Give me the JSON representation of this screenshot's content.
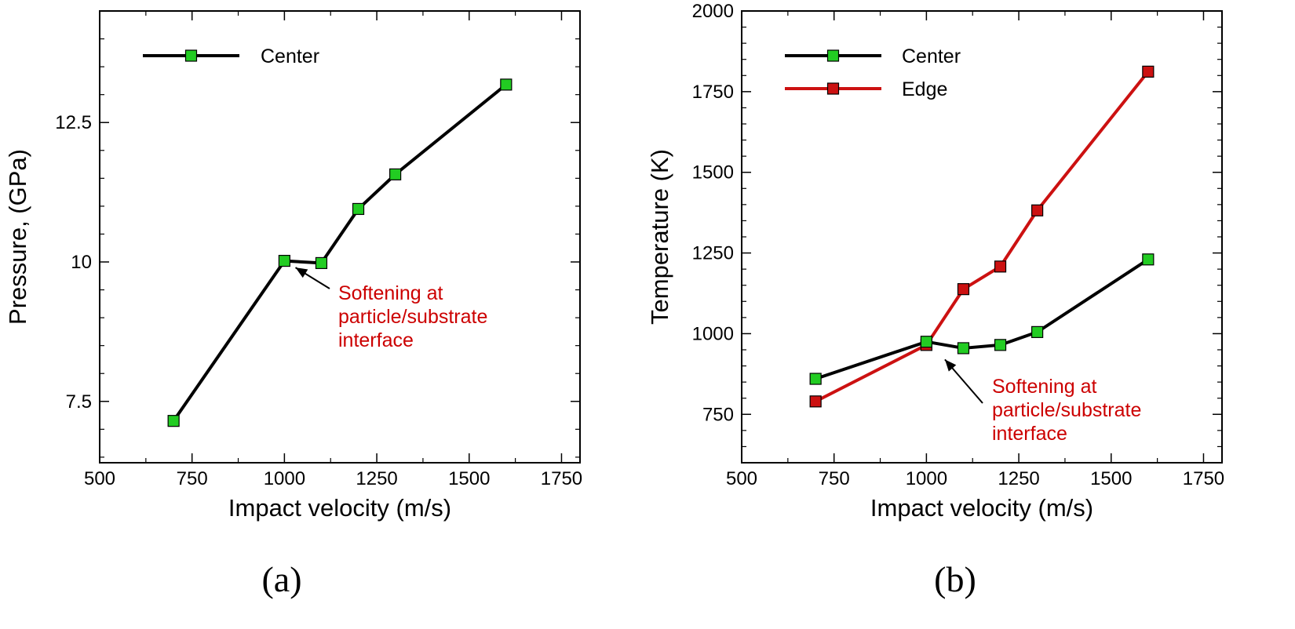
{
  "chart_data": [
    {
      "type": "line",
      "panel_label": "(a)",
      "xlabel": "Impact velocity (m/s)",
      "ylabel": "Pressure, (GPa)",
      "xlim": [
        500,
        1800
      ],
      "ylim": [
        6.4,
        14.5
      ],
      "xticks": [
        500,
        750,
        1000,
        1250,
        1500,
        1750
      ],
      "xtick_labels": [
        "500",
        "750",
        "1000",
        "1250",
        "1500",
        "1750"
      ],
      "yticks": [
        7.5,
        10,
        12.5
      ],
      "ytick_labels": [
        "7.5",
        "10",
        "12.5"
      ],
      "legend_position": "top-left",
      "series": [
        {
          "name": "Center",
          "color": "#000000",
          "marker_color": "#22cc22",
          "x": [
            700,
            1000,
            1100,
            1200,
            1300,
            1600
          ],
          "values": [
            7.15,
            10.02,
            9.98,
            10.95,
            11.57,
            13.18
          ]
        }
      ],
      "annotation": {
        "lines": [
          "Softening at",
          "particle/substrate",
          "interface"
        ],
        "color": "#cc0000",
        "arrow_target": [
          1030,
          9.9
        ]
      }
    },
    {
      "type": "line",
      "panel_label": "(b)",
      "xlabel": "Impact velocity (m/s)",
      "ylabel": "Temperature (K)",
      "xlim": [
        500,
        1800
      ],
      "ylim": [
        600,
        2000
      ],
      "xticks": [
        500,
        750,
        1000,
        1250,
        1500,
        1750
      ],
      "xtick_labels": [
        "500",
        "750",
        "1000",
        "1250",
        "1500",
        "1750"
      ],
      "yticks": [
        750,
        1000,
        1250,
        1500,
        1750,
        2000
      ],
      "ytick_labels": [
        "750",
        "1000",
        "1250",
        "1500",
        "1750",
        "2000"
      ],
      "legend_position": "top-left",
      "series": [
        {
          "name": "Center",
          "color": "#000000",
          "marker_color": "#22cc22",
          "x": [
            700,
            1000,
            1100,
            1200,
            1300,
            1600
          ],
          "values": [
            860,
            975,
            955,
            965,
            1005,
            1230
          ]
        },
        {
          "name": "Edge",
          "color": "#cc1111",
          "marker_color": "#cc1111",
          "x": [
            700,
            1000,
            1100,
            1200,
            1300,
            1600
          ],
          "values": [
            790,
            965,
            1138,
            1208,
            1382,
            1812
          ]
        }
      ],
      "annotation": {
        "lines": [
          "Softening at",
          "particle/substrate",
          "interface"
        ],
        "color": "#cc0000",
        "arrow_target": [
          1050,
          920
        ]
      }
    }
  ]
}
